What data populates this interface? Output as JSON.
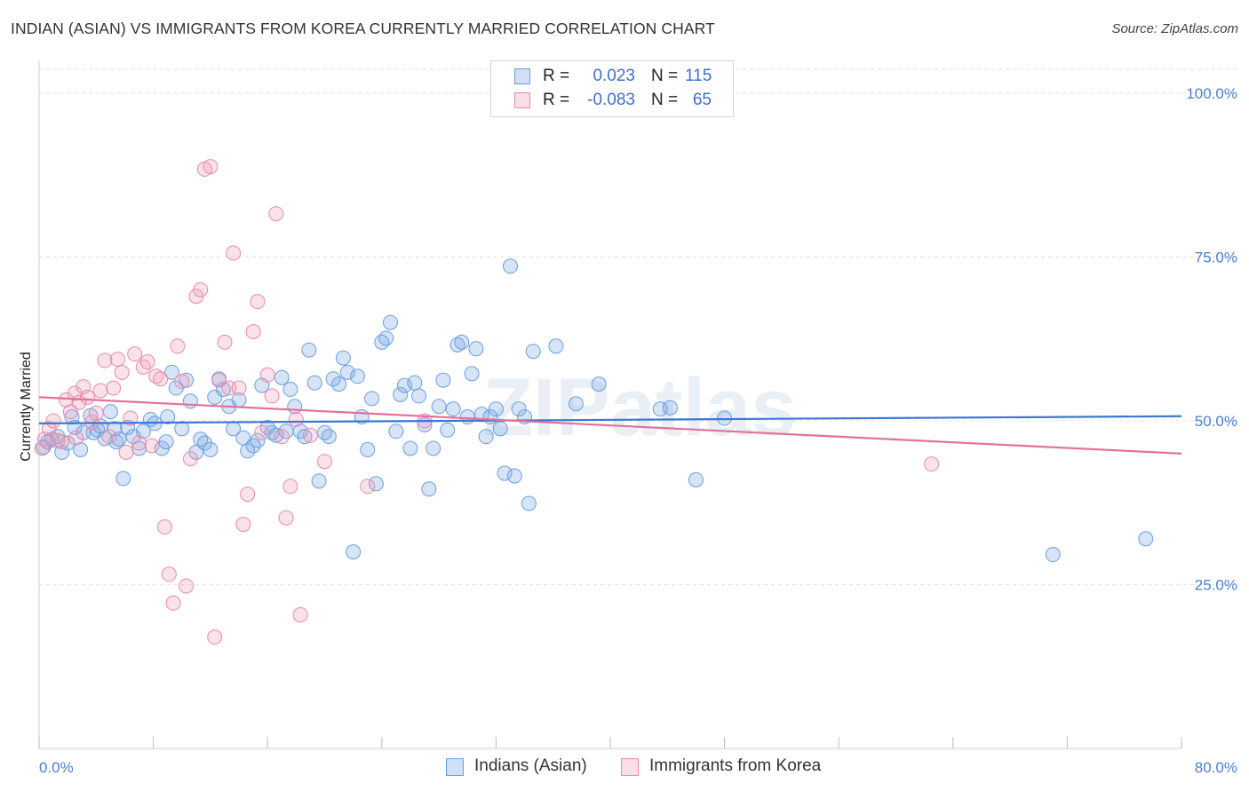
{
  "title": "INDIAN (ASIAN) VS IMMIGRANTS FROM KOREA CURRENTLY MARRIED CORRELATION CHART",
  "source": "Source: ZipAtlas.com",
  "watermark": "ZIPatlas",
  "colors": {
    "blue": "#6a9fe0",
    "blue_fill": "rgba(120,165,225,0.30)",
    "blue_line": "#3a78d4",
    "pink": "#e88aa8",
    "pink_fill": "rgba(240,160,185,0.30)",
    "pink_line": "#e3719a",
    "axis_text": "#4a7fcf",
    "grid": "#e0e0e0"
  },
  "legend": {
    "rows": [
      {
        "r_label": "R =",
        "r_value": "0.023",
        "n_label": "N =",
        "n_value": "115"
      },
      {
        "r_label": "R =",
        "r_value": "-0.083",
        "n_label": "N =",
        "n_value": "65"
      }
    ]
  },
  "bottom_legend": {
    "series1": "Indians (Asian)",
    "series2": "Immigrants from Korea"
  },
  "chart_data": {
    "type": "scatter",
    "title": "INDIAN (ASIAN) VS IMMIGRANTS FROM KOREA CURRENTLY MARRIED CORRELATION CHART",
    "xlabel": "",
    "ylabel": "Currently Married",
    "xlim": [
      0,
      80
    ],
    "ylim": [
      0,
      105
    ],
    "x_tick_labels": [
      "0.0%",
      "80.0%"
    ],
    "y_tick_values": [
      25,
      50,
      75,
      100
    ],
    "y_tick_labels": [
      "25.0%",
      "50.0%",
      "75.0%",
      "100.0%"
    ],
    "grid": true,
    "legend_position": "top-center",
    "series": [
      {
        "name": "Indians (Asian)",
        "r": 0.023,
        "n": 115,
        "trend": {
          "x": [
            0,
            80
          ],
          "y": [
            49.6,
            50.7
          ]
        },
        "points": [
          [
            0.3,
            46.0
          ],
          [
            0.6,
            46.8
          ],
          [
            0.9,
            47.2
          ],
          [
            1.3,
            47.6
          ],
          [
            1.6,
            45.2
          ],
          [
            2.0,
            46.6
          ],
          [
            2.3,
            50.6
          ],
          [
            2.5,
            49.0
          ],
          [
            2.9,
            45.6
          ],
          [
            3.1,
            48.2
          ],
          [
            3.6,
            50.8
          ],
          [
            3.8,
            48.2
          ],
          [
            4.1,
            48.6
          ],
          [
            4.3,
            49.2
          ],
          [
            4.6,
            47.3
          ],
          [
            5.0,
            51.4
          ],
          [
            5.3,
            48.8
          ],
          [
            5.6,
            47.2
          ],
          [
            5.9,
            41.2
          ],
          [
            6.2,
            49.0
          ],
          [
            6.6,
            47.6
          ],
          [
            7.0,
            45.8
          ],
          [
            7.3,
            48.4
          ],
          [
            7.8,
            50.2
          ],
          [
            8.1,
            49.6
          ],
          [
            8.6,
            45.8
          ],
          [
            8.9,
            46.8
          ],
          [
            9.3,
            57.4
          ],
          [
            9.6,
            55.0
          ],
          [
            10.0,
            48.8
          ],
          [
            10.3,
            56.2
          ],
          [
            10.6,
            53.0
          ],
          [
            11.0,
            45.2
          ],
          [
            11.3,
            47.2
          ],
          [
            11.6,
            46.6
          ],
          [
            12.0,
            45.6
          ],
          [
            12.3,
            53.6
          ],
          [
            12.6,
            56.4
          ],
          [
            12.9,
            54.8
          ],
          [
            13.3,
            52.2
          ],
          [
            13.6,
            48.8
          ],
          [
            14.0,
            53.2
          ],
          [
            14.3,
            47.4
          ],
          [
            14.6,
            45.4
          ],
          [
            15.0,
            46.2
          ],
          [
            15.3,
            47.0
          ],
          [
            15.6,
            55.4
          ],
          [
            16.0,
            49.0
          ],
          [
            16.3,
            48.2
          ],
          [
            16.6,
            47.8
          ],
          [
            17.0,
            56.6
          ],
          [
            17.3,
            48.4
          ],
          [
            17.6,
            54.8
          ],
          [
            17.9,
            52.2
          ],
          [
            18.3,
            48.4
          ],
          [
            18.6,
            47.6
          ],
          [
            18.9,
            60.8
          ],
          [
            19.3,
            55.8
          ],
          [
            19.6,
            40.8
          ],
          [
            20.0,
            48.2
          ],
          [
            20.3,
            47.6
          ],
          [
            20.6,
            56.4
          ],
          [
            21.0,
            55.6
          ],
          [
            21.3,
            59.6
          ],
          [
            21.6,
            57.4
          ],
          [
            22.0,
            30.0
          ],
          [
            22.3,
            56.8
          ],
          [
            22.6,
            50.6
          ],
          [
            23.0,
            45.6
          ],
          [
            23.3,
            53.4
          ],
          [
            23.6,
            40.4
          ],
          [
            24.0,
            62.0
          ],
          [
            24.3,
            62.6
          ],
          [
            24.6,
            65.0
          ],
          [
            25.0,
            48.4
          ],
          [
            25.3,
            54.0
          ],
          [
            25.6,
            55.4
          ],
          [
            26.0,
            45.8
          ],
          [
            26.3,
            55.8
          ],
          [
            26.6,
            53.8
          ],
          [
            27.0,
            49.4
          ],
          [
            27.3,
            39.6
          ],
          [
            27.6,
            45.8
          ],
          [
            28.0,
            52.2
          ],
          [
            28.3,
            56.2
          ],
          [
            28.6,
            48.6
          ],
          [
            29.0,
            51.8
          ],
          [
            29.3,
            61.6
          ],
          [
            29.6,
            62.0
          ],
          [
            30.0,
            50.6
          ],
          [
            30.3,
            57.2
          ],
          [
            30.6,
            61.0
          ],
          [
            31.0,
            51.0
          ],
          [
            31.3,
            47.6
          ],
          [
            31.6,
            50.6
          ],
          [
            32.0,
            51.8
          ],
          [
            32.3,
            48.8
          ],
          [
            32.6,
            42.0
          ],
          [
            33.0,
            73.6
          ],
          [
            33.3,
            41.6
          ],
          [
            33.6,
            51.8
          ],
          [
            34.0,
            50.6
          ],
          [
            34.3,
            37.4
          ],
          [
            34.6,
            60.6
          ],
          [
            36.2,
            61.4
          ],
          [
            37.6,
            52.6
          ],
          [
            39.2,
            55.6
          ],
          [
            43.5,
            51.8
          ],
          [
            44.2,
            52.0
          ],
          [
            46.0,
            41.0
          ],
          [
            48.0,
            50.4
          ],
          [
            71.0,
            29.6
          ],
          [
            77.5,
            32.0
          ],
          [
            5.4,
            46.8
          ],
          [
            9.0,
            50.6
          ]
        ]
      },
      {
        "name": "Immigrants from Korea",
        "r": -0.083,
        "n": 65,
        "trend": {
          "x": [
            0,
            80
          ],
          "y": [
            53.6,
            45.0
          ]
        },
        "points": [
          [
            0.2,
            45.8
          ],
          [
            0.4,
            47.2
          ],
          [
            0.7,
            48.8
          ],
          [
            1.0,
            50.0
          ],
          [
            1.3,
            47.0
          ],
          [
            1.6,
            46.8
          ],
          [
            1.9,
            53.2
          ],
          [
            2.2,
            51.4
          ],
          [
            2.5,
            54.2
          ],
          [
            2.8,
            52.8
          ],
          [
            3.1,
            55.2
          ],
          [
            3.4,
            53.6
          ],
          [
            3.7,
            49.8
          ],
          [
            4.0,
            51.2
          ],
          [
            4.3,
            54.6
          ],
          [
            4.6,
            59.2
          ],
          [
            4.9,
            47.6
          ],
          [
            5.2,
            55.0
          ],
          [
            5.5,
            59.4
          ],
          [
            5.8,
            57.4
          ],
          [
            6.1,
            45.2
          ],
          [
            6.4,
            50.4
          ],
          [
            6.7,
            60.2
          ],
          [
            7.0,
            46.6
          ],
          [
            7.3,
            58.2
          ],
          [
            7.6,
            59.0
          ],
          [
            7.9,
            46.2
          ],
          [
            8.2,
            56.8
          ],
          [
            8.5,
            56.4
          ],
          [
            8.8,
            33.8
          ],
          [
            9.1,
            26.6
          ],
          [
            9.4,
            22.2
          ],
          [
            9.7,
            61.4
          ],
          [
            10.0,
            56.0
          ],
          [
            10.3,
            24.8
          ],
          [
            10.6,
            44.2
          ],
          [
            11.0,
            69.0
          ],
          [
            11.3,
            70.0
          ],
          [
            11.6,
            88.4
          ],
          [
            12.0,
            88.8
          ],
          [
            12.3,
            17.0
          ],
          [
            12.6,
            56.2
          ],
          [
            13.0,
            62.0
          ],
          [
            13.3,
            55.0
          ],
          [
            13.6,
            75.6
          ],
          [
            14.0,
            55.0
          ],
          [
            14.3,
            34.2
          ],
          [
            14.6,
            38.8
          ],
          [
            15.0,
            63.6
          ],
          [
            15.3,
            68.2
          ],
          [
            15.6,
            48.2
          ],
          [
            16.0,
            57.0
          ],
          [
            16.3,
            53.8
          ],
          [
            16.6,
            81.6
          ],
          [
            17.0,
            47.6
          ],
          [
            17.3,
            35.2
          ],
          [
            17.6,
            40.0
          ],
          [
            18.0,
            50.2
          ],
          [
            18.3,
            20.4
          ],
          [
            19.0,
            47.8
          ],
          [
            20.0,
            43.8
          ],
          [
            23.0,
            40.0
          ],
          [
            27.0,
            50.0
          ],
          [
            62.5,
            43.4
          ],
          [
            2.6,
            47.4
          ]
        ]
      }
    ]
  }
}
